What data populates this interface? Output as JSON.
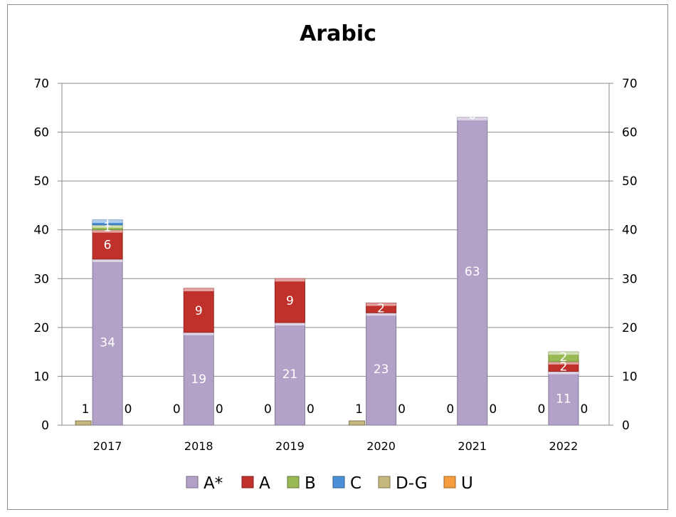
{
  "chart_data": {
    "type": "bar",
    "stacked": true,
    "title": "Arabic",
    "categories": [
      "2017",
      "2018",
      "2019",
      "2020",
      "2021",
      "2022"
    ],
    "series": [
      {
        "name": "A*",
        "color": "#b3a2c7",
        "values": [
          34,
          19,
          21,
          23,
          63,
          11
        ]
      },
      {
        "name": "A",
        "color": "#c0312b",
        "values": [
          6,
          9,
          9,
          2,
          0,
          2
        ]
      },
      {
        "name": "B",
        "color": "#98b954",
        "values": [
          1,
          0,
          0,
          0,
          0,
          2
        ]
      },
      {
        "name": "C",
        "color": "#4a8fd8",
        "values": [
          1,
          0,
          0,
          0,
          0,
          0
        ]
      },
      {
        "name": "D-G",
        "color": "#c6b77f",
        "values": [
          1,
          0,
          0,
          1,
          0,
          0
        ]
      },
      {
        "name": "U",
        "color": "#f59c3d",
        "values": [
          0,
          0,
          0,
          0,
          0,
          0
        ]
      }
    ],
    "ylim": [
      0,
      70
    ],
    "yticks": [
      0,
      10,
      20,
      30,
      40,
      50,
      60,
      70
    ],
    "secondary_ylim": [
      0,
      70
    ],
    "grid": true,
    "legend_position": "bottom"
  }
}
